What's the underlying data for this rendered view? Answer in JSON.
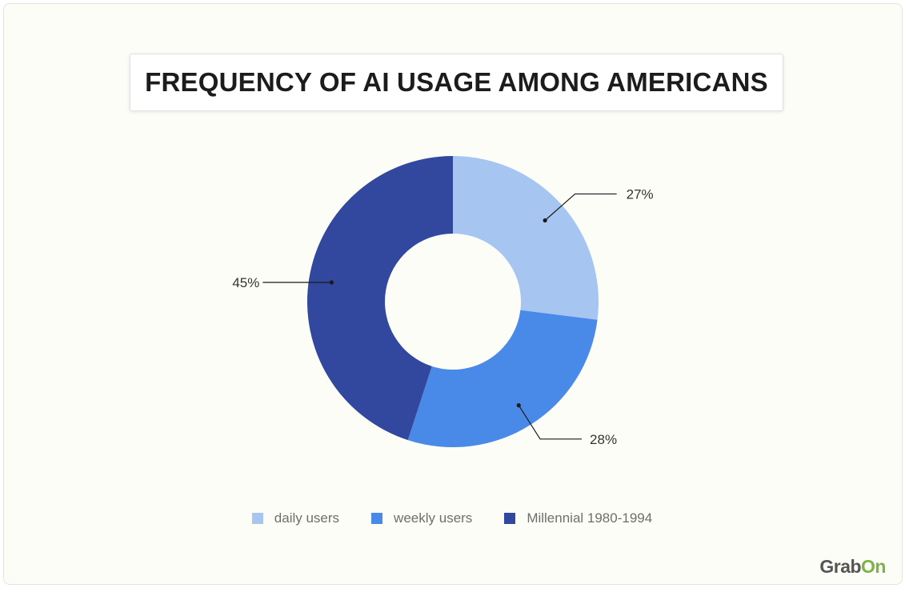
{
  "colors": {
    "daily": "#a6c5f1",
    "weekly": "#4989e8",
    "millennial": "#32489e",
    "leader_line": "#1a1a1a",
    "label_text": "#333333"
  },
  "chart_data": {
    "type": "pie",
    "variant": "donut",
    "title": "FREQUENCY OF AI USAGE AMONG AMERICANS",
    "categories": [
      "daily users",
      "weekly users",
      "Millennial 1980-1994"
    ],
    "values": [
      27,
      28,
      45
    ],
    "data_labels": [
      "27%",
      "28%",
      "45%"
    ],
    "unit": "%",
    "legend_position": "bottom",
    "start_angle": "12 o'clock",
    "direction": "clockwise"
  },
  "brand": {
    "logo_part1": "Grab",
    "logo_part2": "On"
  }
}
